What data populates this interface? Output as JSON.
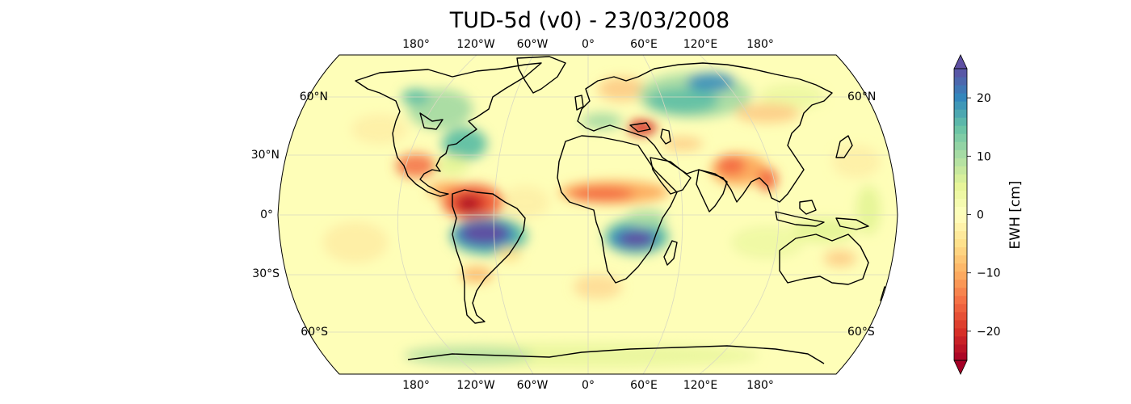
{
  "title": "TUD-5d (v0) - 23/03/2008",
  "lon_labels": [
    "180°",
    "120°W",
    "60°W",
    "0°",
    "60°E",
    "120°E",
    "180°"
  ],
  "lat_labels_left": [
    "60°N",
    "30°N",
    "0°",
    "30°S",
    "60°S"
  ],
  "lat_labels_right": [
    "60°N",
    "60°S"
  ],
  "colorbar": {
    "label": "EWH [cm]",
    "ticks": [
      "20",
      "10",
      "0",
      "−10",
      "−20"
    ],
    "range": [
      -25,
      25
    ],
    "colormap": "Spectral",
    "colors": [
      "#a50026",
      "#d73027",
      "#f46d43",
      "#fdae61",
      "#fee08b",
      "#ffffbf",
      "#e6f598",
      "#abdda4",
      "#66c2a5",
      "#3288bd",
      "#5e4fa2"
    ]
  },
  "map": {
    "projection": "Robinson",
    "background": "#fefeb8",
    "coastline_color": "#000000",
    "anomalies": [
      {
        "region": "Amazon",
        "value": 25
      },
      {
        "region": "Zambezi",
        "value": 25
      },
      {
        "region": "Siberia",
        "value": 14
      },
      {
        "region": "Northern South America",
        "value": -25
      },
      {
        "region": "Sahel",
        "value": -10
      },
      {
        "region": "India",
        "value": -12
      },
      {
        "region": "Eastern Europe",
        "value": -18
      },
      {
        "region": "Canada",
        "value": 10
      }
    ]
  }
}
